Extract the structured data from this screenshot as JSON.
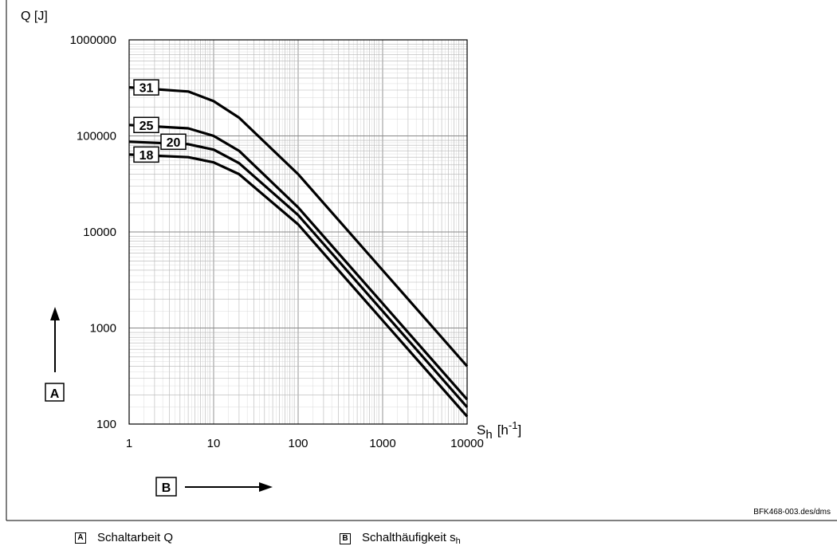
{
  "chart_data": {
    "type": "line",
    "ylabel": "Q [J]",
    "xlabel": {
      "main": "S",
      "sub": "h",
      "unit_pre": "[h",
      "unit_sup": "-1",
      "unit_post": "]"
    },
    "x_scale": "log",
    "y_scale": "log",
    "xlim": [
      1,
      10000
    ],
    "ylim": [
      100,
      1000000
    ],
    "grid": true,
    "x_ticks": [
      1,
      10,
      100,
      1000,
      10000
    ],
    "x_tick_labels": [
      "1",
      "10",
      "100",
      "1000",
      "10000"
    ],
    "y_ticks": [
      100,
      1000,
      10000,
      100000,
      1000000
    ],
    "y_tick_labels": [
      "100",
      "1000",
      "10000",
      "100000",
      "1000000"
    ],
    "series": [
      {
        "name": "31",
        "x": [
          1,
          5,
          10,
          20,
          100,
          1000,
          10000
        ],
        "y": [
          320000,
          290000,
          230000,
          155000,
          40000,
          4000,
          400
        ]
      },
      {
        "name": "25",
        "x": [
          1,
          5,
          10,
          20,
          100,
          1000,
          10000
        ],
        "y": [
          130000,
          120000,
          100000,
          70000,
          18000,
          1800,
          180
        ]
      },
      {
        "name": "20",
        "x": [
          1,
          5,
          10,
          20,
          100,
          1000,
          10000
        ],
        "y": [
          87000,
          82000,
          72000,
          52000,
          15000,
          1500,
          150
        ]
      },
      {
        "name": "18",
        "x": [
          1,
          5,
          10,
          20,
          100,
          1000,
          10000
        ],
        "y": [
          64000,
          60000,
          53000,
          40000,
          12000,
          1200,
          120
        ]
      }
    ],
    "axis_markers": {
      "y": "A",
      "x": "B"
    },
    "figure_code": "BFK468-003.des/dms"
  },
  "caption": {
    "a_badge": "A",
    "a_text": "Schaltarbeit Q",
    "b_badge": "B",
    "b_text": "Schalthäufigkeit s",
    "b_sub": "h"
  }
}
